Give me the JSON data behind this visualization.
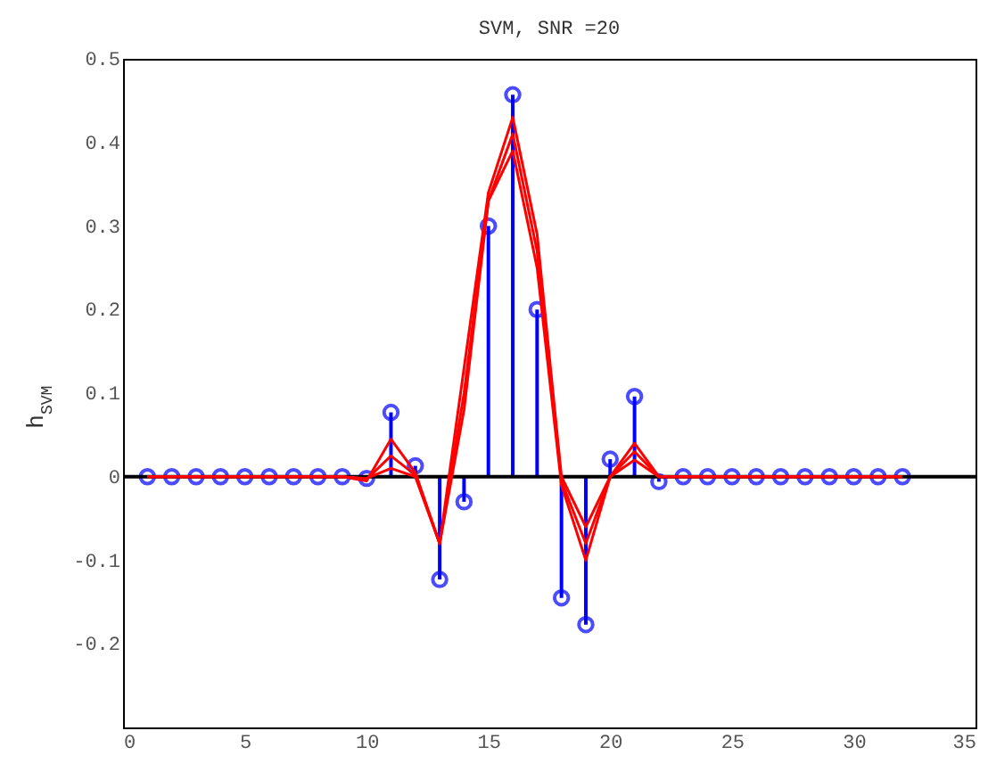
{
  "chart_data": {
    "type": "line",
    "title": "SVM, SNR =20",
    "ylabel": "h$_{SVM}$",
    "x": [
      1,
      2,
      3,
      4,
      5,
      6,
      7,
      8,
      9,
      10,
      11,
      12,
      13,
      14,
      15,
      16,
      17,
      18,
      19,
      20,
      21,
      22,
      23,
      24,
      25,
      26,
      27,
      28,
      29,
      30,
      31,
      32
    ],
    "series": [
      {
        "type": "lollipop",
        "color": "#0000ff",
        "marker": "circle",
        "values": [
          0,
          0,
          0,
          0,
          0,
          0,
          0,
          0,
          0,
          -0.002,
          0.077,
          0.013,
          -0.123,
          -0.03,
          0.3,
          0.457,
          0.2,
          -0.145,
          -0.177,
          0.021,
          0.096,
          -0.006,
          0,
          0,
          0,
          0,
          0,
          0,
          0,
          0,
          0,
          0
        ]
      },
      {
        "color": "#ff0000",
        "marker": "none",
        "values": [
          0,
          0,
          0,
          0,
          0,
          0,
          0,
          0,
          0,
          -0.005,
          0.045,
          0.005,
          -0.08,
          0.13,
          0.34,
          0.43,
          0.29,
          0,
          -0.06,
          0,
          0.04,
          0,
          0,
          0,
          0,
          0,
          0,
          0,
          0,
          0,
          0,
          0
        ]
      },
      {
        "color": "#ff0000",
        "marker": "none",
        "values": [
          0,
          0,
          0,
          0,
          0,
          0,
          0,
          0,
          0,
          -0.003,
          0.025,
          0.002,
          -0.08,
          0.1,
          0.33,
          0.41,
          0.27,
          -0.005,
          -0.08,
          0,
          0.03,
          0,
          0,
          0,
          0,
          0,
          0,
          0,
          0,
          0,
          0,
          0
        ]
      },
      {
        "color": "#ff0000",
        "marker": "none",
        "values": [
          0,
          0,
          0,
          0,
          0,
          0,
          0,
          0,
          0,
          -0.002,
          0.01,
          0,
          -0.08,
          0.08,
          0.33,
          0.39,
          0.25,
          -0.01,
          -0.1,
          0,
          0.02,
          0,
          0,
          0,
          0,
          0,
          0,
          0,
          0,
          0,
          0,
          0
        ]
      }
    ],
    "ref_lines": [
      {
        "axis": "y",
        "value": 0,
        "color": "#000000"
      }
    ],
    "xlim": [
      0,
      35
    ],
    "xticks": [
      0,
      5,
      10,
      15,
      20,
      25,
      30,
      35
    ],
    "ylim": [
      -0.3,
      0.5
    ],
    "yticks": [
      -0.2,
      -0.1,
      0,
      0.1,
      0.2,
      0.3,
      0.4,
      0.5
    ],
    "grid": false
  }
}
